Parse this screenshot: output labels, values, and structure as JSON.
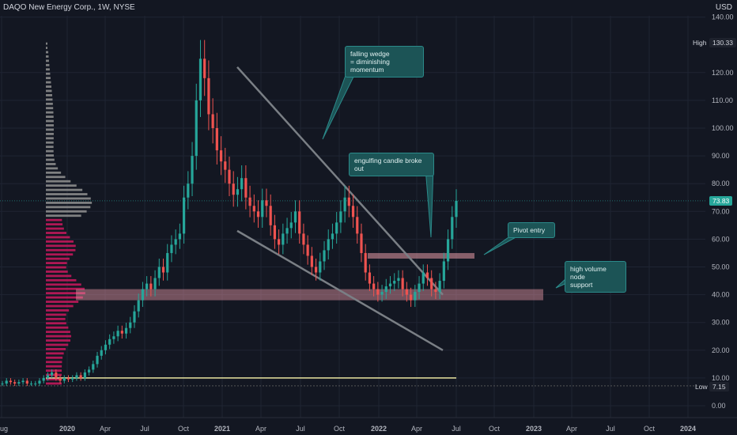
{
  "title": "DAQO New Energy Corp., 1W, NYSE",
  "currency": "USD",
  "chart_data": {
    "type": "candlestick",
    "y_ticks": [
      "0.00",
      "10.00",
      "20.00",
      "30.00",
      "40.00",
      "50.00",
      "60.00",
      "70.00",
      "80.00",
      "90.00",
      "100.00",
      "110.00",
      "120.00",
      "140.00"
    ],
    "x_ticks": [
      "Aug",
      "2020",
      "Apr",
      "Jul",
      "Oct",
      "2021",
      "Apr",
      "Jul",
      "Oct",
      "2022",
      "Apr",
      "Jul",
      "Oct",
      "2023",
      "Apr",
      "Jul",
      "Oct",
      "2024"
    ],
    "ylim": [
      -5,
      145
    ],
    "high": {
      "label": "High",
      "value": "130.33"
    },
    "low": {
      "label": "Low",
      "value": "7.15"
    },
    "last_price": "73.83",
    "annotations": [
      "falling wedge\n= diminishing momentum",
      "engulfing candle broke out",
      "Pivot entry",
      "high volume node\nsupport"
    ],
    "support_zone": [
      38,
      42
    ],
    "pivot_zone": [
      53,
      55
    ],
    "base_line": 10,
    "colors": {
      "up": "#26a69a",
      "down": "#ef5350",
      "grid": "#1f2433",
      "zone": "#e89aa6",
      "profile_up": "#8c8c8c",
      "profile_down": "#c2185b",
      "line": "#e8e4a0",
      "wedge": "#7a7f85"
    }
  }
}
